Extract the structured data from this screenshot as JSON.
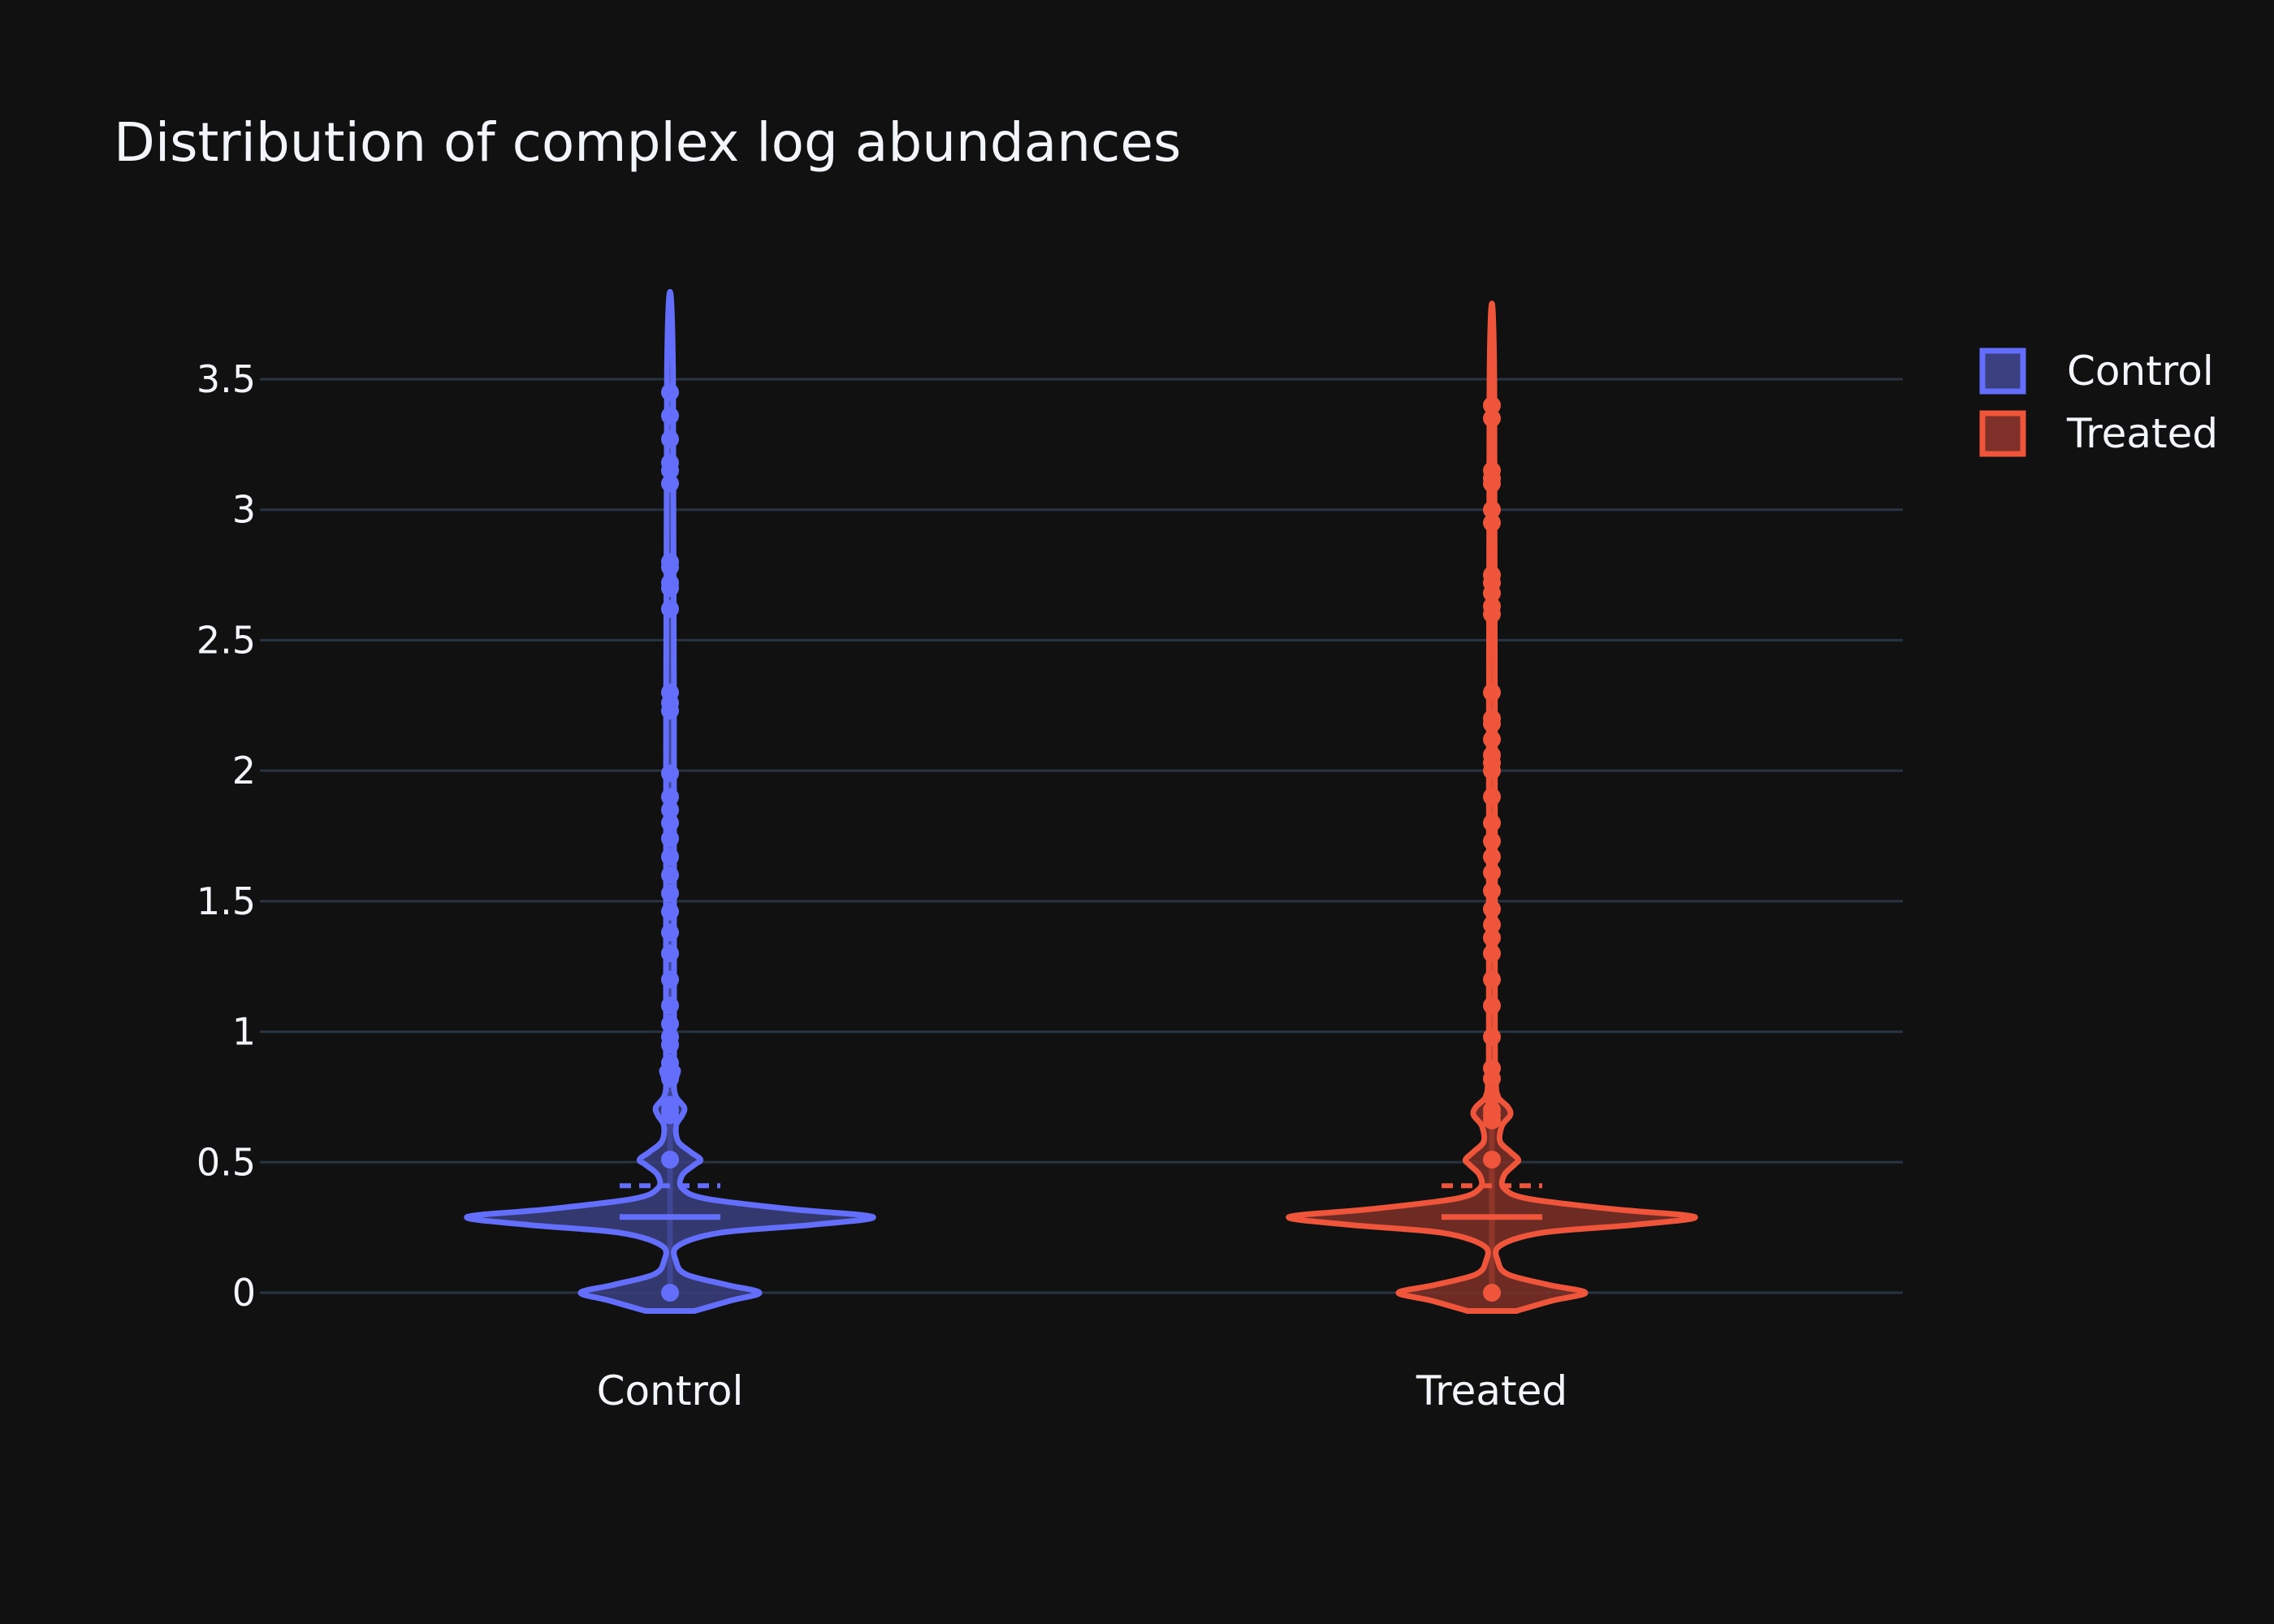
{
  "chart_data": {
    "type": "violin",
    "title": "Distribution of complex log abundances",
    "xlabel": "",
    "ylabel": "",
    "categories": [
      "Control",
      "Treated"
    ],
    "ylim": [
      -0.07,
      3.55
    ],
    "yticks": [
      {
        "value": 0,
        "label": "0"
      },
      {
        "value": 0.5,
        "label": "0.5"
      },
      {
        "value": 1,
        "label": "1"
      },
      {
        "value": 1.5,
        "label": "1.5"
      },
      {
        "value": 2,
        "label": "2"
      },
      {
        "value": 2.5,
        "label": "2.5"
      },
      {
        "value": 3,
        "label": "3"
      },
      {
        "value": 3.5,
        "label": "3.5"
      }
    ],
    "grid": true,
    "legend_position": "top-right",
    "series": [
      {
        "name": "Control",
        "color": "#636efa",
        "fill": "#3a4080",
        "median": 0.29,
        "mean": 0.41,
        "min": -0.07,
        "max": 3.52,
        "density": [
          [
            -0.07,
            0.12
          ],
          [
            -0.03,
            0.3
          ],
          [
            0.0,
            0.44
          ],
          [
            0.03,
            0.28
          ],
          [
            0.07,
            0.08
          ],
          [
            0.12,
            0.03
          ],
          [
            0.18,
            0.04
          ],
          [
            0.23,
            0.25
          ],
          [
            0.26,
            0.7
          ],
          [
            0.29,
            1.0
          ],
          [
            0.32,
            0.6
          ],
          [
            0.36,
            0.18
          ],
          [
            0.4,
            0.06
          ],
          [
            0.45,
            0.06
          ],
          [
            0.49,
            0.12
          ],
          [
            0.51,
            0.15
          ],
          [
            0.54,
            0.1
          ],
          [
            0.58,
            0.04
          ],
          [
            0.64,
            0.03
          ],
          [
            0.68,
            0.06
          ],
          [
            0.71,
            0.07
          ],
          [
            0.75,
            0.03
          ],
          [
            0.8,
            0.02
          ],
          [
            0.85,
            0.04
          ],
          [
            0.88,
            0.02
          ],
          [
            1.0,
            0.02
          ],
          [
            3.52,
            0.015
          ]
        ],
        "points": [
          0.0,
          0.51,
          0.68,
          0.7,
          0.72,
          0.82,
          0.85,
          0.88,
          0.95,
          0.98,
          1.03,
          1.1,
          1.2,
          1.3,
          1.38,
          1.46,
          1.53,
          1.6,
          1.67,
          1.74,
          1.8,
          1.85,
          1.9,
          1.99,
          2.23,
          2.26,
          2.3,
          2.62,
          2.7,
          2.72,
          2.78,
          2.8,
          3.1,
          3.15,
          3.18,
          3.27,
          3.36,
          3.45
        ]
      },
      {
        "name": "Treated",
        "color": "#ef553b",
        "fill": "#7f3028",
        "median": 0.29,
        "mean": 0.41,
        "min": -0.07,
        "max": 3.48,
        "density": [
          [
            -0.07,
            0.12
          ],
          [
            -0.03,
            0.3
          ],
          [
            0.0,
            0.46
          ],
          [
            0.03,
            0.28
          ],
          [
            0.07,
            0.08
          ],
          [
            0.12,
            0.03
          ],
          [
            0.18,
            0.04
          ],
          [
            0.23,
            0.25
          ],
          [
            0.26,
            0.7
          ],
          [
            0.29,
            1.0
          ],
          [
            0.32,
            0.6
          ],
          [
            0.36,
            0.18
          ],
          [
            0.4,
            0.06
          ],
          [
            0.45,
            0.06
          ],
          [
            0.49,
            0.11
          ],
          [
            0.51,
            0.13
          ],
          [
            0.54,
            0.09
          ],
          [
            0.58,
            0.04
          ],
          [
            0.64,
            0.05
          ],
          [
            0.68,
            0.09
          ],
          [
            0.71,
            0.08
          ],
          [
            0.75,
            0.03
          ],
          [
            0.8,
            0.02
          ],
          [
            0.85,
            0.02
          ],
          [
            1.0,
            0.015
          ],
          [
            3.48,
            0.012
          ]
        ],
        "points": [
          0.0,
          0.51,
          0.66,
          0.68,
          0.7,
          0.75,
          0.82,
          0.86,
          0.98,
          1.1,
          1.2,
          1.3,
          1.36,
          1.41,
          1.47,
          1.54,
          1.61,
          1.67,
          1.73,
          1.8,
          1.9,
          2.0,
          2.03,
          2.06,
          2.12,
          2.18,
          2.2,
          2.3,
          2.6,
          2.63,
          2.68,
          2.72,
          2.75,
          2.95,
          3.0,
          3.1,
          3.12,
          3.15,
          3.35,
          3.4
        ]
      }
    ]
  }
}
